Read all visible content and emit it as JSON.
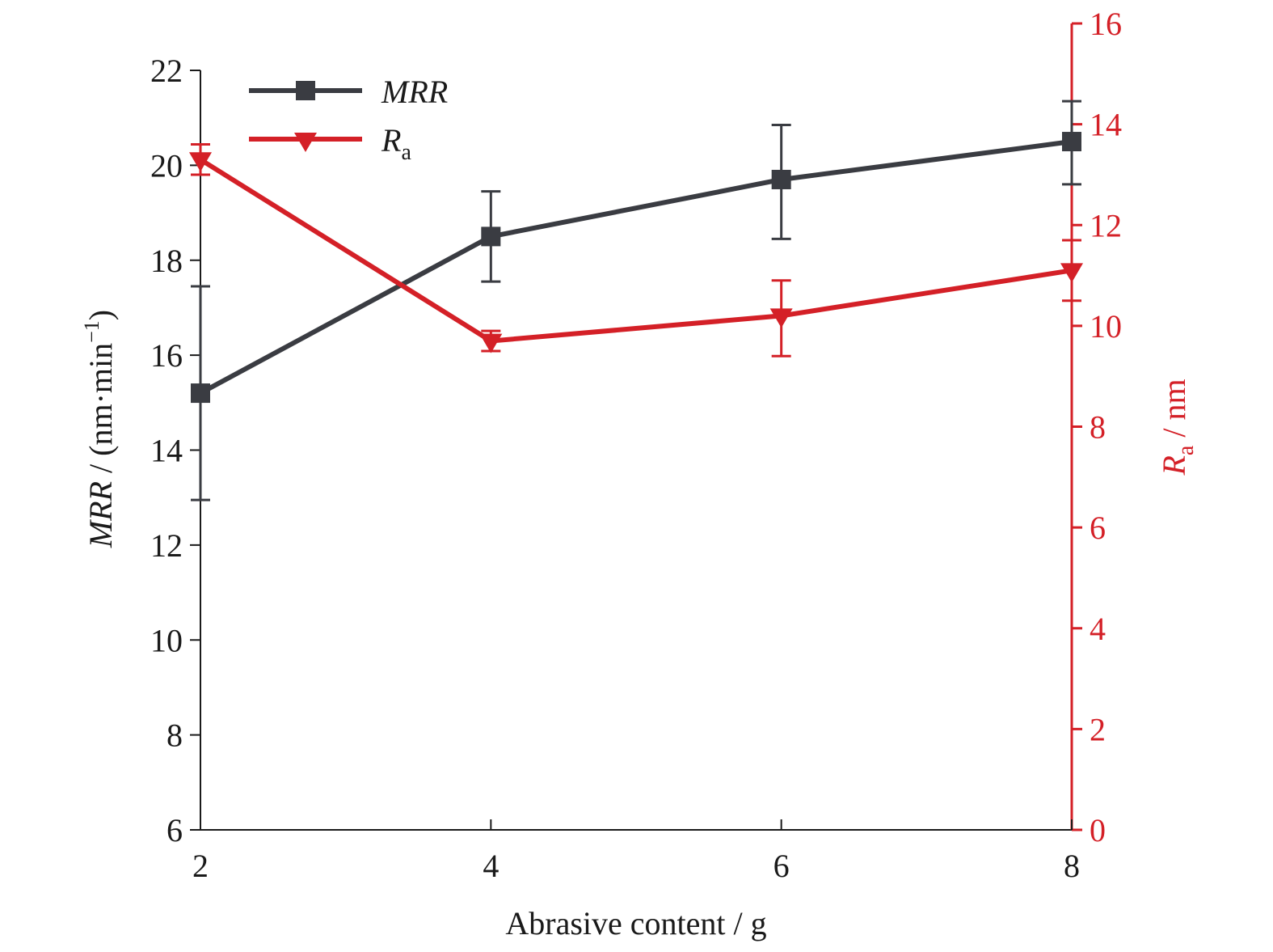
{
  "chart_data": {
    "type": "line",
    "x": [
      2,
      4,
      6,
      8
    ],
    "xlabel": "Abrasive content / g",
    "xlim": [
      2,
      8
    ],
    "xticks": [
      "2",
      "4",
      "6",
      "8"
    ],
    "y_left": {
      "label_italic": "MRR",
      "label_rest": " / (nm·min",
      "label_sup": "−1",
      "label_close": ")",
      "lim": [
        6,
        22
      ],
      "ticks": [
        "6",
        "8",
        "10",
        "12",
        "14",
        "16",
        "18",
        "20",
        "22"
      ],
      "color": "#1a1a1a"
    },
    "y_right": {
      "label_italic": "R",
      "label_sub": "a",
      "label_rest": " / nm",
      "lim": [
        0,
        16
      ],
      "ticks": [
        "0",
        "2",
        "4",
        "6",
        "8",
        "10",
        "12",
        "14",
        "16"
      ],
      "color": "#d42027"
    },
    "series": [
      {
        "name": "MRR",
        "axis": "left",
        "values": [
          15.2,
          18.5,
          19.7,
          20.5
        ],
        "err_low": [
          12.95,
          17.55,
          18.45,
          19.6
        ],
        "err_high": [
          17.45,
          19.45,
          20.85,
          21.35
        ],
        "color": "#3a3c42",
        "marker": "square"
      },
      {
        "name_italic": "R",
        "name_sub": "a",
        "axis": "right",
        "values": [
          13.3,
          9.7,
          10.2,
          11.1
        ],
        "err_low": [
          13.0,
          9.5,
          9.4,
          10.5
        ],
        "err_high": [
          13.6,
          9.9,
          10.9,
          11.7
        ],
        "color": "#d42027",
        "marker": "triangle-down"
      }
    ],
    "legend_position": "top-left",
    "grid": false
  }
}
